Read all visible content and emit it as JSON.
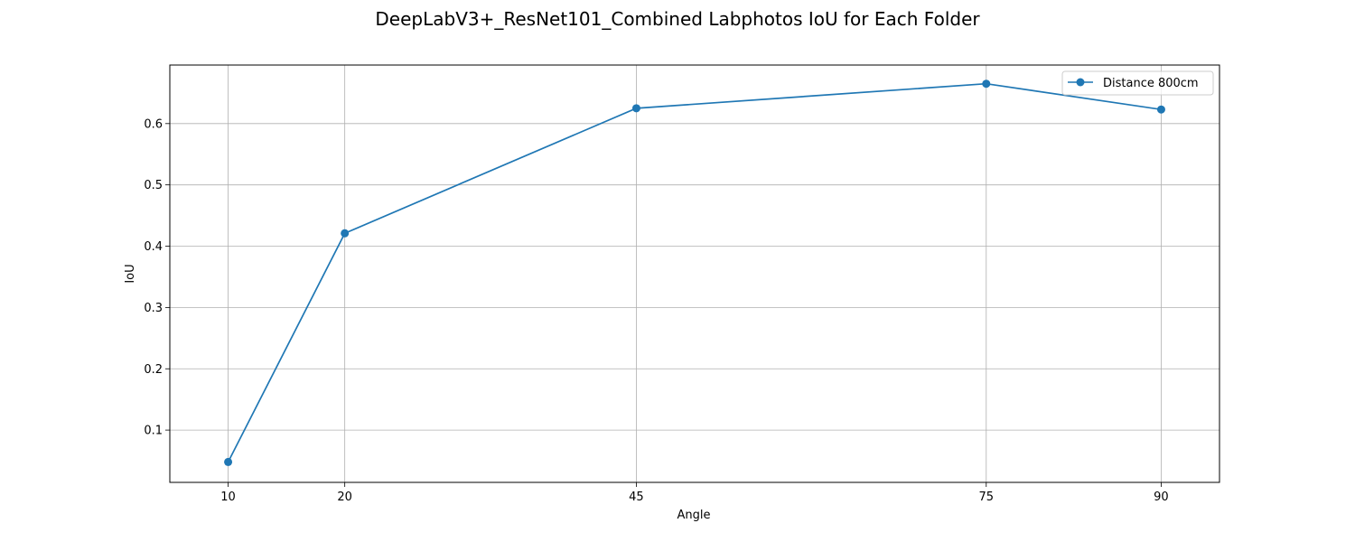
{
  "chart_data": {
    "type": "line",
    "title": "DeepLabV3+_ResNet101_Combined Labphotos IoU for Each Folder",
    "xlabel": "Angle",
    "ylabel": "IoU",
    "x": [
      10,
      20,
      45,
      75,
      90
    ],
    "x_tick_labels": [
      "10",
      "20",
      "45",
      "75",
      "90"
    ],
    "xlim": [
      5,
      95
    ],
    "ylim": [
      0.0147,
      0.6955
    ],
    "y_ticks": [
      0.1,
      0.2,
      0.3,
      0.4,
      0.5,
      0.6
    ],
    "y_tick_labels": [
      "0.1",
      "0.2",
      "0.3",
      "0.4",
      "0.5",
      "0.6"
    ],
    "grid": true,
    "legend_position": "top-right",
    "series": [
      {
        "name": "Distance 800cm",
        "color": "#1f77b4",
        "marker": "circle",
        "values": [
          0.048,
          0.421,
          0.625,
          0.665,
          0.623
        ]
      }
    ]
  }
}
